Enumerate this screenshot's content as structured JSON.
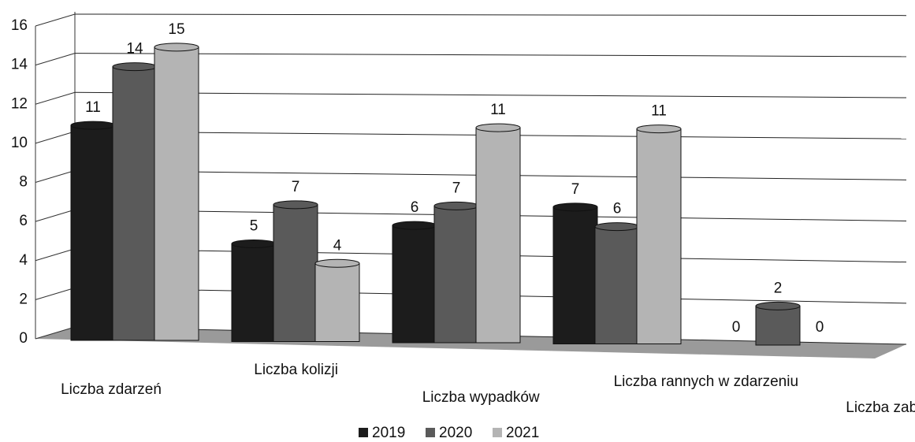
{
  "chart_data": {
    "type": "bar",
    "categories": [
      "Liczba zdarzeń",
      "Liczba kolizji",
      "Liczba wypadków",
      "Liczba rannych w zdarzeniu",
      "Liczba zabitych w zdarzeniu"
    ],
    "series": [
      {
        "name": "2019",
        "color": "#1c1c1c",
        "values": [
          11,
          5,
          6,
          7,
          0
        ]
      },
      {
        "name": "2020",
        "color": "#5a5a5a",
        "values": [
          14,
          7,
          7,
          6,
          2
        ]
      },
      {
        "name": "2021",
        "color": "#b4b4b4",
        "values": [
          15,
          4,
          11,
          11,
          0
        ]
      }
    ],
    "ylim": [
      0,
      16
    ],
    "yticks": [
      0,
      2,
      4,
      6,
      8,
      10,
      12,
      14,
      16
    ],
    "grid": true,
    "legend": "bottom"
  }
}
